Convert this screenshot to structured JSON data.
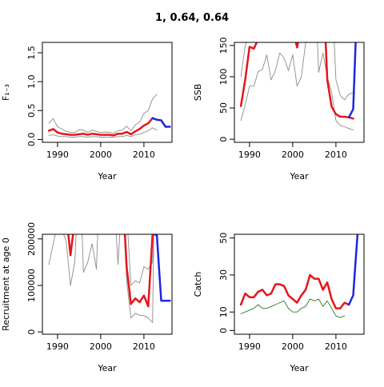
{
  "figure": {
    "title": "1, 0.64, 0.64"
  },
  "colors": {
    "fit": "#e8141b",
    "projection": "#1c27e0",
    "uncertainty": "#8c8c8c",
    "observed": "#2a7a2a"
  },
  "chart_data": [
    {
      "type": "line",
      "ylabel": "F₁₋₃",
      "xlabel": "Year",
      "xlim": [
        1986.5,
        2016.5
      ],
      "ylim": [
        -0.05,
        1.68
      ],
      "xticks": [
        1990,
        2000,
        2010
      ],
      "yticks": [
        0.0,
        0.5,
        1.0,
        1.5
      ],
      "ytick_labels": [
        "0.0",
        "0.5",
        "1.0",
        "1.5"
      ],
      "series": [
        {
          "role": "fit",
          "x": [
            1988,
            1989,
            1990,
            1991,
            1992,
            1993,
            1994,
            1995,
            1996,
            1997,
            1998,
            1999,
            2000,
            2001,
            2002,
            2003,
            2004,
            2005,
            2006,
            2007,
            2008,
            2009,
            2010,
            2011,
            2012
          ],
          "values": [
            0.15,
            0.18,
            0.12,
            0.1,
            0.09,
            0.08,
            0.08,
            0.09,
            0.1,
            0.08,
            0.1,
            0.09,
            0.08,
            0.08,
            0.08,
            0.07,
            0.1,
            0.1,
            0.13,
            0.09,
            0.14,
            0.18,
            0.24,
            0.28,
            0.37
          ]
        },
        {
          "role": "projection",
          "x": [
            2012,
            2013,
            2014,
            2015,
            2016
          ],
          "values": [
            0.37,
            0.34,
            0.33,
            0.22,
            0.22
          ]
        },
        {
          "role": "upper",
          "x": [
            1988,
            1989,
            1990,
            1991,
            1992,
            1993,
            1994,
            1995,
            1996,
            1997,
            1998,
            1999,
            2000,
            2001,
            2002,
            2003,
            2004,
            2005,
            2006,
            2007,
            2008,
            2009,
            2010,
            2011,
            2012,
            2013
          ],
          "values": [
            0.28,
            0.36,
            0.22,
            0.18,
            0.14,
            0.12,
            0.12,
            0.17,
            0.16,
            0.12,
            0.16,
            0.14,
            0.12,
            0.13,
            0.12,
            0.11,
            0.15,
            0.16,
            0.23,
            0.15,
            0.25,
            0.3,
            0.45,
            0.5,
            0.7,
            0.78
          ]
        },
        {
          "role": "lower",
          "x": [
            1988,
            1989,
            1990,
            1991,
            1992,
            1993,
            1994,
            1995,
            1996,
            1997,
            1998,
            1999,
            2000,
            2001,
            2002,
            2003,
            2004,
            2005,
            2006,
            2007,
            2008,
            2009,
            2010,
            2011,
            2012,
            2013
          ],
          "values": [
            0.07,
            0.08,
            0.06,
            0.05,
            0.05,
            0.04,
            0.04,
            0.05,
            0.05,
            0.04,
            0.05,
            0.05,
            0.04,
            0.04,
            0.04,
            0.04,
            0.05,
            0.05,
            0.07,
            0.05,
            0.08,
            0.09,
            0.12,
            0.15,
            0.2,
            0.16
          ]
        }
      ]
    },
    {
      "type": "line",
      "ylabel": "SSB",
      "xlabel": "Year",
      "xlim": [
        1986.5,
        2016.5
      ],
      "ylim": [
        -5,
        155
      ],
      "xticks": [
        1990,
        2000,
        2010
      ],
      "yticks": [
        0,
        50,
        100,
        150
      ],
      "ytick_labels": [
        "0",
        "50",
        "100",
        "150"
      ],
      "series": [
        {
          "role": "fit",
          "x": [
            1988,
            1989,
            1990,
            1991,
            1992
          ],
          "values": [
            53,
            95,
            148,
            145,
            160
          ]
        },
        {
          "role": "fit",
          "x": [
            2000.6,
            2001,
            2001.4
          ],
          "values": [
            160,
            147,
            160
          ]
        },
        {
          "role": "fit",
          "x": [
            2007.6,
            2008,
            2009,
            2010,
            2011,
            2012,
            2013,
            2014
          ],
          "values": [
            160,
            95,
            52,
            40,
            36,
            36,
            35,
            33
          ]
        },
        {
          "role": "projection",
          "x": [
            2013,
            2014,
            2014.6
          ],
          "values": [
            35,
            48,
            160
          ]
        },
        {
          "role": "upper",
          "x": [
            1988,
            1989,
            1989.6
          ],
          "values": [
            100,
            150,
            160
          ]
        },
        {
          "role": "lower",
          "x": [
            1988,
            1989,
            1990,
            1991,
            1992,
            1993,
            1994,
            1995,
            1996,
            1997,
            1998,
            1999,
            2000,
            2001,
            2002,
            2003,
            2004
          ],
          "values": [
            30,
            55,
            85,
            85,
            108,
            112,
            135,
            95,
            110,
            138,
            130,
            110,
            135,
            85,
            100,
            155,
            160
          ]
        },
        {
          "role": "lower",
          "x": [
            2005.7,
            2006,
            2007,
            2008,
            2009,
            2010,
            2011,
            2012,
            2013,
            2014
          ],
          "values": [
            160,
            107,
            138,
            100,
            75,
            30,
            22,
            20,
            17,
            15
          ]
        },
        {
          "role": "upper",
          "x": [
            2009.6,
            2010,
            2011,
            2012,
            2013,
            2014
          ],
          "values": [
            160,
            95,
            70,
            63,
            72,
            75
          ]
        }
      ]
    },
    {
      "type": "line",
      "ylabel": "Recruitment at age 0",
      "xlabel": "Year",
      "xlim": [
        1986.5,
        2016.5
      ],
      "ylim": [
        -5000,
        210000
      ],
      "xticks": [
        1990,
        2000,
        2010
      ],
      "yticks": [
        0,
        100000,
        200000
      ],
      "ytick_labels": [
        "0",
        "100000",
        "200000"
      ],
      "series": [
        {
          "role": "fit",
          "x": [
            1992.5,
            1993,
            1993.6
          ],
          "values": [
            210000,
            165000,
            210000
          ]
        },
        {
          "role": "fit",
          "x": [
            2005.6,
            2006,
            2007,
            2008,
            2009,
            2010,
            2011,
            2012,
            2012.5
          ],
          "values": [
            210000,
            140000,
            60000,
            72000,
            64000,
            78000,
            55000,
            210000,
            210000
          ]
        },
        {
          "role": "projection",
          "x": [
            2012.6,
            2013,
            2014,
            2015,
            2016
          ],
          "values": [
            210000,
            207000,
            67000,
            67000,
            67000
          ]
        },
        {
          "role": "lower",
          "x": [
            1988,
            1989,
            1989.5
          ],
          "values": [
            145000,
            190000,
            210000
          ]
        },
        {
          "role": "lower",
          "x": [
            1991.4,
            1992,
            1993,
            1994,
            1994.3
          ],
          "values": [
            210000,
            195000,
            100000,
            150000,
            210000
          ]
        },
        {
          "role": "lower",
          "x": [
            1995.7,
            1996,
            1997,
            1998,
            1999,
            1999.3
          ],
          "values": [
            210000,
            128000,
            150000,
            190000,
            135000,
            210000
          ]
        },
        {
          "role": "lower",
          "x": [
            2003.6,
            2004,
            2004.4
          ],
          "values": [
            210000,
            145000,
            210000
          ]
        },
        {
          "role": "lower",
          "x": [
            2005.5,
            2006,
            2007,
            2008,
            2009,
            2010,
            2011,
            2012,
            2012.3
          ],
          "values": [
            210000,
            110000,
            30000,
            40000,
            36000,
            35000,
            30000,
            20000,
            210000
          ]
        },
        {
          "role": "upper",
          "x": [
            2006.3,
            2007,
            2008,
            2009,
            2010,
            2011,
            2012,
            2012.3
          ],
          "values": [
            210000,
            100000,
            110000,
            105000,
            140000,
            135000,
            150000,
            210000
          ]
        }
      ]
    },
    {
      "type": "line",
      "ylabel": "Catch",
      "xlabel": "Year",
      "xlim": [
        1986.5,
        2016.5
      ],
      "ylim": [
        -2,
        52
      ],
      "xticks": [
        1990,
        2000,
        2010
      ],
      "yticks": [
        0,
        10,
        30,
        50
      ],
      "ytick_labels": [
        "0",
        "10",
        "30",
        "50"
      ],
      "series": [
        {
          "role": "observed",
          "x": [
            1988,
            1989,
            1990,
            1991,
            1992,
            1993,
            1994,
            1995,
            1996,
            1997,
            1998,
            1999,
            2000,
            2001,
            2002,
            2003,
            2004,
            2005,
            2006,
            2007,
            2008,
            2009,
            2010,
            2011,
            2012
          ],
          "values": [
            9,
            10,
            11,
            12,
            14,
            12,
            12,
            13,
            14,
            15,
            16,
            12,
            10,
            10,
            12,
            13,
            17,
            16,
            17,
            13,
            16,
            12,
            8,
            7,
            8
          ]
        },
        {
          "role": "fit",
          "x": [
            1988,
            1989,
            1990,
            1991,
            1992,
            1993,
            1994,
            1995,
            1996,
            1997,
            1998,
            1999,
            2000,
            2001,
            2002,
            2003,
            2004,
            2005,
            2006,
            2007,
            2008,
            2009,
            2010,
            2011,
            2012,
            2013
          ],
          "values": [
            14,
            20,
            18,
            18,
            21,
            22,
            19,
            20,
            25,
            25,
            24,
            19,
            17,
            15,
            19,
            22,
            30,
            28,
            28,
            22,
            26,
            17,
            12,
            12,
            15,
            14
          ]
        },
        {
          "role": "projection",
          "x": [
            2013,
            2014,
            2015
          ],
          "values": [
            14,
            19,
            52
          ]
        }
      ]
    }
  ]
}
